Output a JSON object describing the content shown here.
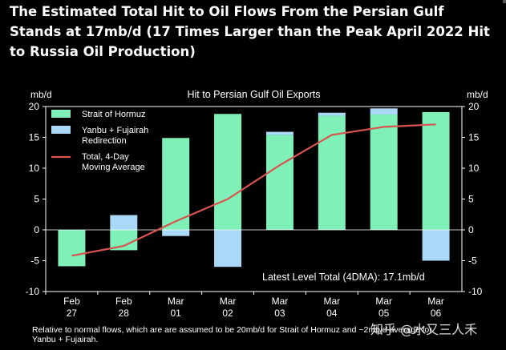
{
  "headline": "The Estimated Total Hit to Oil Flows From the Persian Gulf Stands at 17mb/d (17 Times Larger than the Peak April 2022 Hit to Russia Oil Production)",
  "footnote": {
    "line1": "Relative to normal flows, which are are assumed to be 20mb/d for Strait of Hormuz and ~2mb/d average for",
    "line2": "Yanbu + Fujairah."
  },
  "watermark": "知乎 @水又三人禾",
  "chart_data": {
    "type": "bar",
    "title": "Hit to Persian Gulf Oil Exports",
    "ylabel_left": "mb/d",
    "ylabel_right": "mb/d",
    "ylim": [
      -10,
      20
    ],
    "yticks": [
      -10,
      -5,
      0,
      5,
      10,
      15,
      20
    ],
    "grid": false,
    "legend_position": "top-left",
    "categories": [
      "Feb 27",
      "Feb 28",
      "Mar 01",
      "Mar 02",
      "Mar 03",
      "Mar 04",
      "Mar 05",
      "Mar 06"
    ],
    "category_lines": [
      [
        "Feb",
        "27"
      ],
      [
        "Feb",
        "28"
      ],
      [
        "Mar",
        "01"
      ],
      [
        "Mar",
        "02"
      ],
      [
        "Mar",
        "03"
      ],
      [
        "Mar",
        "04"
      ],
      [
        "Mar",
        "05"
      ],
      [
        "Mar",
        "06"
      ]
    ],
    "series": [
      {
        "name": "Strait of Hormuz",
        "kind": "bar",
        "color": "#7ef0b8",
        "values": [
          -5.9,
          -3.3,
          14.9,
          18.8,
          15.4,
          18.5,
          18.7,
          19.1
        ]
      },
      {
        "name": "Yanbu + Fujairah Redirection",
        "legend_lines": [
          "Yanbu + Fujairah",
          "Redirection"
        ],
        "kind": "bar",
        "color": "#a9d8f8",
        "values": [
          0.0,
          2.4,
          -1.0,
          -6.0,
          0.5,
          0.5,
          1.0,
          -5.0
        ]
      },
      {
        "name": "Total, 4-Day Moving Average",
        "legend_lines": [
          "Total, 4-Day",
          "Moving Average"
        ],
        "kind": "line",
        "color": "#d9534f",
        "values": [
          -4.2,
          -2.6,
          1.4,
          5.0,
          10.5,
          15.4,
          16.7,
          17.1
        ]
      }
    ],
    "annotation": "Latest Level Total (4DMA): 17.1mb/d"
  }
}
